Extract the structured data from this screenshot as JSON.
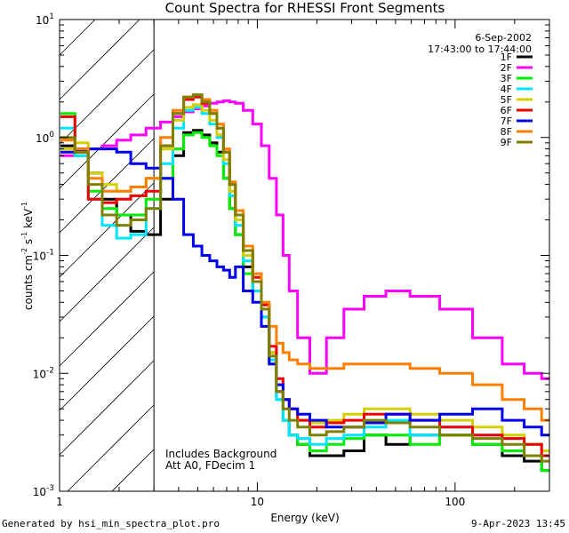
{
  "footer": {
    "left": "Generated by hsi_min_spectra_plot.pro",
    "right": "9-Apr-2023 13:45"
  },
  "chart_data": {
    "type": "line",
    "title": "Count Spectra for RHESSI Front Segments",
    "xlabel": "Energy (keV)",
    "ylabel_parts": [
      "counts cm",
      "-2",
      " s",
      "-1",
      " keV",
      "-1"
    ],
    "xscale": "log",
    "yscale": "log",
    "xlim": [
      1,
      300
    ],
    "ylim": [
      0.001,
      10
    ],
    "x_ticks": [
      {
        "value": 1,
        "label": "1"
      },
      {
        "value": 10,
        "label": "10"
      },
      {
        "value": 100,
        "label": "100"
      }
    ],
    "y_ticks": [
      {
        "value": 10,
        "base": "10",
        "exp": "1"
      },
      {
        "value": 1,
        "base": "10",
        "exp": "0"
      },
      {
        "value": 0.1,
        "base": "10",
        "exp": "-1"
      },
      {
        "value": 0.01,
        "base": "10",
        "exp": "-2"
      },
      {
        "value": 0.001,
        "base": "10",
        "exp": "-3"
      }
    ],
    "shaded_region": {
      "x_from": 1,
      "x_to": 3,
      "pattern": "diagonal hatch"
    },
    "legend": {
      "position": "top-right",
      "date": "6-Sep-2002",
      "time_range": "17:43:00 to 17:44:00"
    },
    "annotations": [
      "Includes Background",
      "Att A0, FDecim 1"
    ],
    "series": [
      {
        "name": "1F",
        "color": "#000000",
        "x": [
          1.1,
          1.3,
          1.5,
          1.8,
          2.1,
          2.5,
          3,
          3.5,
          4,
          4.5,
          5,
          5.5,
          6,
          6.5,
          7,
          7.5,
          8,
          9,
          10,
          11,
          12,
          13,
          14,
          15,
          17,
          20,
          25,
          30,
          40,
          50,
          70,
          100,
          150,
          200,
          250,
          300
        ],
        "y": [
          0.85,
          0.8,
          0.5,
          0.3,
          0.22,
          0.16,
          0.15,
          0.3,
          0.7,
          1.1,
          1.15,
          1.05,
          0.9,
          0.75,
          0.45,
          0.25,
          0.15,
          0.08,
          0.05,
          0.03,
          0.015,
          0.007,
          0.004,
          0.003,
          0.0025,
          0.002,
          0.002,
          0.0022,
          0.003,
          0.0025,
          0.003,
          0.003,
          0.0025,
          0.002,
          0.0018,
          0.0015
        ]
      },
      {
        "name": "2F",
        "color": "#ff00ff",
        "x": [
          1.1,
          1.3,
          1.5,
          1.8,
          2.1,
          2.5,
          3,
          3.5,
          4,
          4.5,
          5,
          5.5,
          6,
          6.5,
          7,
          7.5,
          8,
          9,
          10,
          11,
          12,
          13,
          14,
          15,
          17,
          20,
          25,
          30,
          40,
          50,
          70,
          100,
          150,
          200,
          250,
          300
        ],
        "y": [
          0.7,
          0.75,
          0.8,
          0.85,
          0.95,
          1.05,
          1.2,
          1.35,
          1.5,
          1.65,
          1.75,
          1.85,
          1.95,
          2.0,
          2.05,
          2.0,
          1.95,
          1.7,
          1.3,
          0.85,
          0.45,
          0.22,
          0.1,
          0.05,
          0.02,
          0.01,
          0.02,
          0.035,
          0.045,
          0.05,
          0.045,
          0.035,
          0.02,
          0.012,
          0.01,
          0.009
        ]
      },
      {
        "name": "3F",
        "color": "#00ee00",
        "x": [
          1.1,
          1.3,
          1.5,
          1.8,
          2.1,
          2.5,
          3,
          3.5,
          4,
          4.5,
          5,
          5.5,
          6,
          6.5,
          7,
          7.5,
          8,
          9,
          10,
          11,
          12,
          13,
          14,
          15,
          17,
          20,
          25,
          30,
          40,
          50,
          70,
          100,
          150,
          200,
          250,
          300
        ],
        "y": [
          1.6,
          0.7,
          0.35,
          0.25,
          0.22,
          0.22,
          0.3,
          0.45,
          0.8,
          1.05,
          1.1,
          1.0,
          0.85,
          0.7,
          0.45,
          0.25,
          0.15,
          0.07,
          0.05,
          0.03,
          0.012,
          0.006,
          0.004,
          0.003,
          0.0025,
          0.0022,
          0.0025,
          0.0028,
          0.003,
          0.003,
          0.0025,
          0.003,
          0.0025,
          0.0022,
          0.002,
          0.0015
        ]
      },
      {
        "name": "4F",
        "color": "#00e5ff",
        "x": [
          1.1,
          1.3,
          1.5,
          1.8,
          2.1,
          2.5,
          3,
          3.5,
          4,
          4.5,
          5,
          5.5,
          6,
          6.5,
          7,
          7.5,
          8,
          9,
          10,
          11,
          12,
          13,
          14,
          15,
          17,
          20,
          25,
          30,
          40,
          50,
          70,
          100,
          150,
          200,
          250,
          300
        ],
        "y": [
          1.2,
          0.7,
          0.3,
          0.18,
          0.14,
          0.15,
          0.25,
          0.6,
          1.2,
          1.7,
          1.8,
          1.6,
          1.3,
          1.0,
          0.6,
          0.32,
          0.18,
          0.09,
          0.05,
          0.03,
          0.013,
          0.006,
          0.004,
          0.003,
          0.0028,
          0.0025,
          0.0028,
          0.003,
          0.0035,
          0.004,
          0.003,
          0.0035,
          0.003,
          0.0028,
          0.0025,
          0.002
        ]
      },
      {
        "name": "5F",
        "color": "#d4d000",
        "x": [
          1.1,
          1.3,
          1.5,
          1.8,
          2.1,
          2.5,
          3,
          3.5,
          4,
          4.5,
          5,
          5.5,
          6,
          6.5,
          7,
          7.5,
          8,
          9,
          10,
          11,
          12,
          13,
          14,
          15,
          17,
          20,
          25,
          30,
          40,
          50,
          70,
          100,
          150,
          200,
          250,
          300
        ],
        "y": [
          0.8,
          0.9,
          0.5,
          0.4,
          0.35,
          0.38,
          0.45,
          0.8,
          1.4,
          1.8,
          1.9,
          1.7,
          1.4,
          1.05,
          0.65,
          0.35,
          0.2,
          0.1,
          0.06,
          0.035,
          0.015,
          0.008,
          0.006,
          0.005,
          0.004,
          0.0038,
          0.004,
          0.0045,
          0.005,
          0.005,
          0.0045,
          0.004,
          0.0035,
          0.003,
          0.0025,
          0.0022
        ]
      },
      {
        "name": "6F",
        "color": "#ee0000",
        "x": [
          1.1,
          1.3,
          1.5,
          1.8,
          2.1,
          2.5,
          3,
          3.5,
          4,
          4.5,
          5,
          5.5,
          6,
          6.5,
          7,
          7.5,
          8,
          9,
          10,
          11,
          12,
          13,
          14,
          15,
          17,
          20,
          25,
          30,
          40,
          50,
          70,
          100,
          150,
          200,
          250,
          300
        ],
        "y": [
          1.5,
          0.75,
          0.3,
          0.28,
          0.3,
          0.32,
          0.35,
          0.85,
          1.6,
          2.1,
          2.2,
          1.95,
          1.6,
          1.2,
          0.75,
          0.4,
          0.22,
          0.11,
          0.065,
          0.038,
          0.017,
          0.009,
          0.006,
          0.005,
          0.004,
          0.0035,
          0.0038,
          0.004,
          0.0045,
          0.0045,
          0.004,
          0.0035,
          0.003,
          0.0028,
          0.0025,
          0.002
        ]
      },
      {
        "name": "7F",
        "color": "#0000ee",
        "x": [
          1.1,
          1.3,
          1.5,
          1.8,
          2.1,
          2.5,
          3,
          3.5,
          4,
          4.5,
          5,
          5.5,
          6,
          6.5,
          7,
          7.5,
          8,
          9,
          10,
          11,
          12,
          13,
          14,
          15,
          17,
          20,
          25,
          30,
          40,
          50,
          70,
          100,
          150,
          200,
          250,
          300
        ],
        "y": [
          0.75,
          0.78,
          0.8,
          0.8,
          0.75,
          0.6,
          0.55,
          0.45,
          0.3,
          0.15,
          0.12,
          0.1,
          0.09,
          0.08,
          0.075,
          0.065,
          0.08,
          0.05,
          0.04,
          0.025,
          0.012,
          0.008,
          0.006,
          0.005,
          0.0045,
          0.004,
          0.0035,
          0.0035,
          0.0038,
          0.0045,
          0.004,
          0.0045,
          0.005,
          0.004,
          0.0035,
          0.003
        ]
      },
      {
        "name": "8F",
        "color": "#ff7f00",
        "x": [
          1.1,
          1.3,
          1.5,
          1.8,
          2.1,
          2.5,
          3,
          3.5,
          4,
          4.5,
          5,
          5.5,
          6,
          6.5,
          7,
          7.5,
          8,
          9,
          10,
          11,
          12,
          13,
          14,
          15,
          17,
          20,
          25,
          30,
          40,
          50,
          70,
          100,
          150,
          200,
          250,
          300
        ],
        "y": [
          0.95,
          0.8,
          0.45,
          0.35,
          0.35,
          0.38,
          0.45,
          1.0,
          1.7,
          2.2,
          2.3,
          2.1,
          1.7,
          1.3,
          0.8,
          0.42,
          0.24,
          0.12,
          0.07,
          0.04,
          0.025,
          0.018,
          0.015,
          0.013,
          0.012,
          0.011,
          0.011,
          0.012,
          0.012,
          0.012,
          0.011,
          0.01,
          0.008,
          0.006,
          0.005,
          0.004
        ]
      },
      {
        "name": "9F",
        "color": "#808000",
        "x": [
          1.1,
          1.3,
          1.5,
          1.8,
          2.1,
          2.5,
          3,
          3.5,
          4,
          4.5,
          5,
          5.5,
          6,
          6.5,
          7,
          7.5,
          8,
          9,
          10,
          11,
          12,
          13,
          14,
          15,
          17,
          20,
          25,
          30,
          40,
          50,
          70,
          100,
          150,
          200,
          250,
          300
        ],
        "y": [
          1.0,
          0.75,
          0.4,
          0.22,
          0.18,
          0.2,
          0.25,
          0.85,
          1.6,
          2.2,
          2.3,
          2.0,
          1.6,
          1.2,
          0.75,
          0.4,
          0.22,
          0.11,
          0.06,
          0.035,
          0.014,
          0.007,
          0.005,
          0.004,
          0.0035,
          0.003,
          0.0032,
          0.0035,
          0.004,
          0.0038,
          0.0035,
          0.003,
          0.0028,
          0.0025,
          0.002,
          0.0018
        ]
      }
    ]
  }
}
